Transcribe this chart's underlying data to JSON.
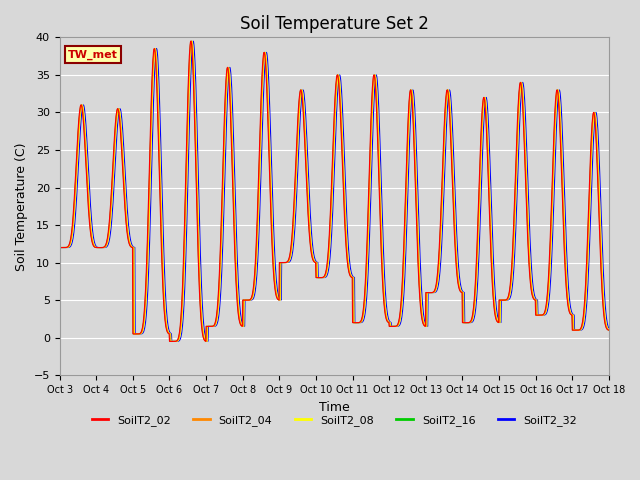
{
  "title": "Soil Temperature Set 2",
  "ylabel": "Soil Temperature (C)",
  "xlabel": "Time",
  "ylim": [
    -5,
    40
  ],
  "background_color": "#d8d8d8",
  "plot_bg_color": "#d8d8d8",
  "annotation_text": "TW_met",
  "annotation_bg": "#ffffaa",
  "annotation_border": "#8b0000",
  "annotation_text_color": "#cc0000",
  "legend_labels": [
    "SoilT2_02",
    "SoilT2_04",
    "SoilT2_08",
    "SoilT2_16",
    "SoilT2_32"
  ],
  "legend_colors": [
    "#ff0000",
    "#ff8800",
    "#ffff00",
    "#00cc00",
    "#0000ff"
  ],
  "xtick_labels": [
    "Oct 3",
    "Oct 4",
    "Oct 5",
    "Oct 6",
    "Oct 7",
    "Oct 8",
    "Oct 9",
    "Oct 10",
    "Oct 11",
    "Oct 12",
    "Oct 13",
    "Oct 14",
    "Oct 15",
    "Oct 16",
    "Oct 17",
    "Oct 18"
  ],
  "grid_color": "#ffffff",
  "title_fontsize": 12,
  "day_peaks": [
    31,
    30.5,
    38.5,
    39.5,
    36,
    38,
    33,
    35,
    35,
    33,
    33,
    32,
    34,
    33,
    30
  ],
  "day_troughs": [
    12,
    12,
    0.5,
    -0.5,
    1.5,
    5,
    10,
    8,
    2,
    1.5,
    6,
    2,
    5,
    3,
    1
  ],
  "n_days": 15,
  "samples_per_day": 96
}
